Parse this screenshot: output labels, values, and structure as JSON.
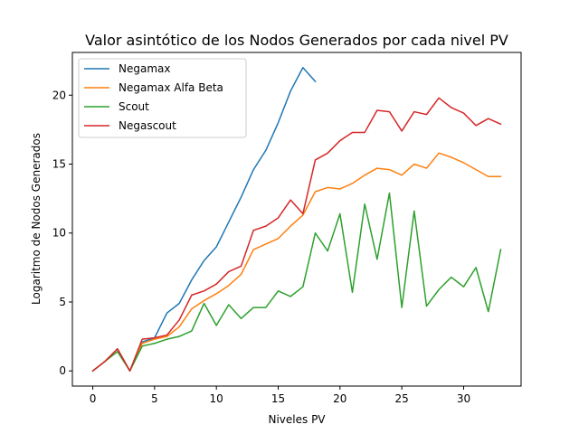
{
  "chart_data": {
    "type": "line",
    "title": "Valor asintótico de los Nodos Generados por cada nivel PV",
    "xlabel": "Niveles PV",
    "ylabel": "Logaritmo de Nodos Generados",
    "xlim": [
      -1.65,
      34.65
    ],
    "ylim": [
      -1.1,
      23.1
    ],
    "xticks": [
      0,
      5,
      10,
      15,
      20,
      25,
      30
    ],
    "yticks": [
      0,
      5,
      10,
      15,
      20
    ],
    "grid": false,
    "legend_position": "top-left",
    "series": [
      {
        "name": "Negamax",
        "color": "#1f77b4",
        "x": [
          0,
          1,
          2,
          3,
          4,
          5,
          6,
          7,
          8,
          9,
          10,
          11,
          12,
          13,
          14,
          15,
          16,
          17,
          18
        ],
        "y": [
          0,
          0.7,
          1.6,
          0,
          2.1,
          2.4,
          4.2,
          4.9,
          6.6,
          8.0,
          9.0,
          10.8,
          12.6,
          14.6,
          16.0,
          18.0,
          20.3,
          22.0,
          21.0
        ]
      },
      {
        "name": "Negamax Alfa Beta",
        "color": "#ff7f0e",
        "x": [
          0,
          1,
          2,
          3,
          4,
          5,
          6,
          7,
          8,
          9,
          10,
          11,
          12,
          13,
          14,
          15,
          16,
          17,
          18,
          19,
          20,
          21,
          22,
          23,
          24,
          25,
          26,
          27,
          28,
          29,
          30,
          31,
          32,
          33
        ],
        "y": [
          0,
          0.7,
          1.6,
          0,
          2.0,
          2.3,
          2.5,
          3.2,
          4.5,
          5.1,
          5.6,
          6.2,
          7.0,
          8.8,
          9.2,
          9.6,
          10.5,
          11.3,
          13.0,
          13.3,
          13.2,
          13.6,
          14.2,
          14.7,
          14.6,
          14.2,
          15.0,
          14.7,
          15.8,
          15.5,
          15.1,
          14.6,
          14.1,
          14.1
        ]
      },
      {
        "name": "Scout",
        "color": "#2ca02c",
        "x": [
          0,
          1,
          2,
          3,
          4,
          5,
          6,
          7,
          8,
          9,
          10,
          11,
          12,
          13,
          14,
          15,
          16,
          17,
          18,
          19,
          20,
          21,
          22,
          23,
          24,
          25,
          26,
          27,
          28,
          29,
          30,
          31,
          32,
          33
        ],
        "y": [
          0,
          0.7,
          1.4,
          0,
          1.8,
          2.0,
          2.3,
          2.5,
          2.9,
          4.9,
          3.3,
          4.8,
          3.8,
          4.6,
          4.6,
          5.8,
          5.4,
          6.1,
          10.0,
          8.7,
          11.4,
          5.7,
          12.1,
          8.1,
          12.9,
          4.6,
          11.6,
          4.7,
          5.9,
          6.8,
          6.1,
          7.5,
          4.3,
          8.8
        ]
      },
      {
        "name": "Negascout",
        "color": "#d62728",
        "x": [
          0,
          1,
          2,
          3,
          4,
          5,
          6,
          7,
          8,
          9,
          10,
          11,
          12,
          13,
          14,
          15,
          16,
          17,
          18,
          19,
          20,
          21,
          22,
          23,
          24,
          25,
          26,
          27,
          28,
          29,
          30,
          31,
          32,
          33
        ],
        "y": [
          0,
          0.7,
          1.6,
          0,
          2.3,
          2.4,
          2.6,
          3.7,
          5.5,
          5.8,
          6.3,
          7.2,
          7.6,
          10.2,
          10.5,
          11.1,
          12.4,
          11.4,
          15.3,
          15.8,
          16.7,
          17.3,
          17.3,
          18.9,
          18.8,
          17.4,
          18.8,
          18.6,
          19.8,
          19.1,
          18.7,
          17.8,
          18.3,
          17.9
        ]
      }
    ]
  }
}
